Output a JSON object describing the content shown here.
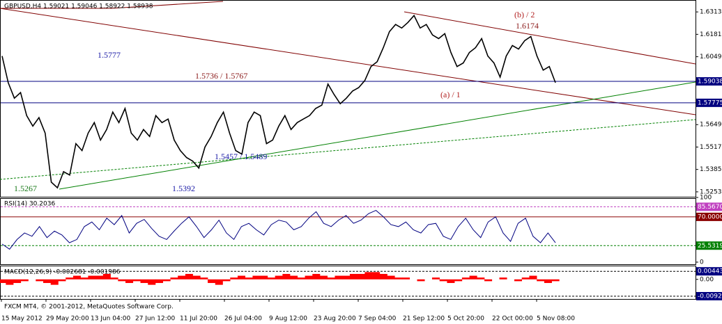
{
  "chart_data": [
    {
      "type": "line",
      "title": "GBPUSD,H4  1.59021 1.59046 1.58922 1.58938",
      "color": "#000000",
      "ylim": [
        1.5224,
        1.6375
      ],
      "yticks": [
        1.6313,
        1.6181,
        1.6049,
        1.5649,
        1.5517,
        1.5385,
        1.5253
      ],
      "hlines": [
        1.59038,
        1.57775
      ],
      "hline_color": "#000080",
      "values": [
        1.6053,
        1.5896,
        1.5805,
        1.5838,
        1.5702,
        1.564,
        1.569,
        1.5599,
        1.531,
        1.5277,
        1.5372,
        1.5352,
        1.5537,
        1.5496,
        1.5599,
        1.5661,
        1.5558,
        1.562,
        1.5723,
        1.5661,
        1.5744,
        1.5599,
        1.5558,
        1.562,
        1.5579,
        1.5702,
        1.5661,
        1.5682,
        1.5558,
        1.5496,
        1.5455,
        1.5434,
        1.5393,
        1.5517,
        1.5579,
        1.5661,
        1.5723,
        1.5599,
        1.5496,
        1.5475,
        1.5661,
        1.5723,
        1.5702,
        1.5537,
        1.5558,
        1.564,
        1.5702,
        1.562,
        1.5661,
        1.5682,
        1.5702,
        1.5744,
        1.5764,
        1.5888,
        1.5826,
        1.5772,
        1.5805,
        1.5847,
        1.5867,
        1.5909,
        1.5991,
        1.602,
        1.6102,
        1.6197,
        1.6239,
        1.6218,
        1.6251,
        1.6292,
        1.6218,
        1.6239,
        1.6177,
        1.6156,
        1.6185,
        1.6074,
        1.5991,
        1.6012,
        1.6074,
        1.6102,
        1.6156,
        1.6053,
        1.6012,
        1.5929,
        1.6053,
        1.6115,
        1.6094,
        1.6144,
        1.6168,
        1.6053,
        1.597,
        1.5991,
        1.5896
      ],
      "annotations": [
        {
          "text": "1.5777",
          "color": "#1a1aa6"
        },
        {
          "text": "1.5736 / 1.5767",
          "color": "#8b1a1a"
        },
        {
          "text": "(a) / 1",
          "color": "#b22222"
        },
        {
          "text": "(b) / 2",
          "color": "#b22222"
        },
        {
          "text": "1.6174",
          "color": "#8b1a1a"
        },
        {
          "text": "1.5267",
          "color": "#1a7a1a"
        },
        {
          "text": "1.5392",
          "color": "#1a1aa6"
        },
        {
          "text": "1.5457 / 1.5489",
          "color": "#1a1aa6"
        }
      ]
    },
    {
      "type": "line",
      "title": "RSI(14) 30.2036",
      "color": "#000080",
      "ylim": [
        0,
        100
      ],
      "yticks": [
        100,
        {
          "value": 85.567,
          "label": "85.5670"
        },
        {
          "value": 70,
          "label": "70.0000"
        },
        25.5319,
        0
      ],
      "level_colors": [
        "#c040c0",
        "#8b0000",
        "#008000"
      ],
      "values": [
        28,
        20,
        35,
        45,
        40,
        55,
        38,
        48,
        42,
        30,
        35,
        55,
        62,
        50,
        68,
        58,
        72,
        45,
        60,
        66,
        52,
        40,
        35,
        48,
        60,
        70,
        55,
        38,
        50,
        65,
        45,
        35,
        55,
        60,
        50,
        42,
        58,
        65,
        62,
        50,
        55,
        68,
        78,
        60,
        55,
        65,
        72,
        60,
        65,
        75,
        80,
        70,
        58,
        55,
        62,
        50,
        45,
        58,
        60,
        40,
        35,
        55,
        68,
        50,
        38,
        62,
        70,
        45,
        32,
        60,
        68,
        40,
        30,
        45,
        30
      ]
    },
    {
      "type": "bar",
      "title": "MACD(12,26,9) -0.002681 -0.001986",
      "color": "#ff0000",
      "ylim": [
        -0.0108,
        0.0072
      ],
      "yticks": [
        0.00443,
        {
          "value": 0,
          "label": "0.00"
        },
        -0.00926
      ],
      "values": [
        -0.002,
        -0.003,
        -0.002,
        -0.001,
        0,
        -0.001,
        -0.002,
        -0.003,
        -0.001,
        0.001,
        0.002,
        0.001,
        0.002,
        0.002,
        0.003,
        0.001,
        -0.001,
        -0.002,
        -0.001,
        -0.002,
        -0.003,
        -0.002,
        -0.001,
        0.001,
        0.002,
        0.003,
        0.002,
        0.001,
        -0.002,
        -0.003,
        -0.001,
        0.001,
        0.002,
        0.001,
        0.002,
        0.002,
        0.001,
        0.002,
        0.003,
        0.002,
        0.001,
        0.002,
        0.003,
        0.002,
        0.001,
        0.002,
        0.002,
        0.003,
        0.003,
        0.004,
        0.004,
        0.003,
        0.002,
        0.001,
        0.001,
        0,
        -0.001,
        0,
        0.001,
        -0.001,
        -0.002,
        -0.001,
        0.001,
        0.002,
        0.001,
        -0.001,
        0,
        0.001,
        0,
        -0.001,
        0.001,
        0.002,
        -0.001,
        -0.002,
        -0.001
      ],
      "xticks": [
        "15 May 2012",
        "29 May 20:00",
        "13 Jun 04:00",
        "27 Jun 12:00",
        "11 Jul 20:00",
        "26 Jul 04:00",
        "9 Aug 12:00",
        "23 Aug 20:00",
        "7 Sep 04:00",
        "21 Sep 12:00",
        "5 Oct 20:00",
        "22 Oct 00:00",
        "5 Nov 08:00"
      ]
    }
  ],
  "footer": "FXCM MT4, © 2001-2012, MetaQuotes Software Corp."
}
